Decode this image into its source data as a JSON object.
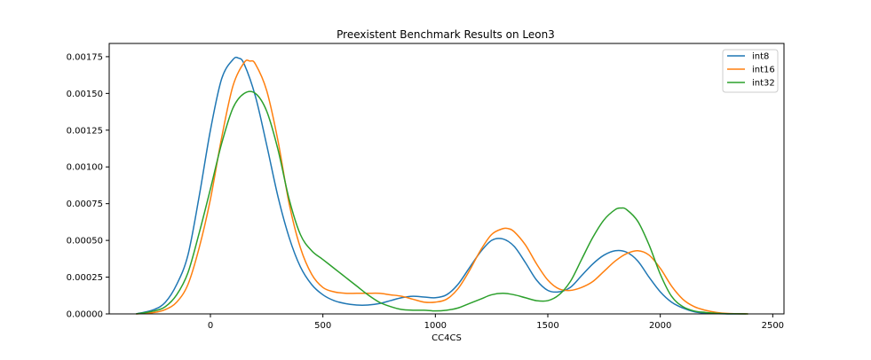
{
  "chart_data": {
    "type": "line",
    "title": "Preexistent Benchmark Results on Leon3",
    "xlabel": "CC4CS",
    "ylabel": "",
    "xlim": [
      -450,
      2550
    ],
    "ylim": [
      0,
      0.00184
    ],
    "x_ticks": [
      0,
      500,
      1000,
      1500,
      2000,
      2500
    ],
    "x_tick_labels": [
      "0",
      "500",
      "1000",
      "1500",
      "2000",
      "2500"
    ],
    "y_ticks": [
      0,
      0.00025,
      0.0005,
      0.00075,
      0.001,
      0.00125,
      0.0015,
      0.00175
    ],
    "y_tick_labels": [
      "0.00000",
      "0.00025",
      "0.00050",
      "0.00075",
      "0.00100",
      "0.00125",
      "0.00150",
      "0.00175"
    ],
    "legend_position": "top-right",
    "grid": false,
    "series": [
      {
        "name": "int8",
        "color": "#1f77b4",
        "x": [
          -330,
          -250,
          -200,
          -150,
          -100,
          -50,
          0,
          50,
          100,
          125,
          150,
          200,
          250,
          300,
          350,
          400,
          450,
          500,
          550,
          600,
          650,
          700,
          750,
          800,
          850,
          900,
          950,
          1000,
          1050,
          1100,
          1150,
          1200,
          1250,
          1300,
          1350,
          1400,
          1450,
          1500,
          1550,
          1600,
          1650,
          1700,
          1750,
          1800,
          1850,
          1900,
          1950,
          2000,
          2050,
          2100,
          2150,
          2200,
          2250,
          2300,
          2380
        ],
        "y": [
          0.0,
          3e-05,
          8e-05,
          0.0002,
          0.0004,
          0.0008,
          0.00125,
          0.0016,
          0.00173,
          0.00174,
          0.0017,
          0.00148,
          0.00115,
          0.0008,
          0.00052,
          0.00032,
          0.0002,
          0.00013,
          9e-05,
          7e-05,
          6e-05,
          6e-05,
          7e-05,
          9e-05,
          0.00011,
          0.00012,
          0.000115,
          0.00011,
          0.00013,
          0.0002,
          0.00031,
          0.00042,
          0.0005,
          0.00051,
          0.00046,
          0.00035,
          0.00023,
          0.00016,
          0.00015,
          0.00018,
          0.00026,
          0.00034,
          0.0004,
          0.00043,
          0.00042,
          0.00036,
          0.00025,
          0.00015,
          8e-05,
          4e-05,
          1.5e-05,
          5e-06,
          2e-06,
          0.0,
          0.0
        ]
      },
      {
        "name": "int16",
        "color": "#ff7f0e",
        "x": [
          -330,
          -250,
          -200,
          -150,
          -100,
          -50,
          0,
          50,
          100,
          150,
          175,
          200,
          250,
          300,
          350,
          400,
          450,
          500,
          550,
          600,
          650,
          700,
          750,
          800,
          850,
          900,
          950,
          1000,
          1050,
          1100,
          1150,
          1200,
          1250,
          1300,
          1325,
          1350,
          1400,
          1450,
          1500,
          1550,
          1600,
          1650,
          1700,
          1750,
          1800,
          1850,
          1900,
          1950,
          2000,
          2050,
          2100,
          2150,
          2200,
          2250,
          2300,
          2390
        ],
        "y": [
          0.0,
          1e-05,
          3e-05,
          8e-05,
          0.0002,
          0.00045,
          0.00078,
          0.0012,
          0.00155,
          0.00171,
          0.00172,
          0.0017,
          0.00152,
          0.00118,
          0.00075,
          0.00045,
          0.00027,
          0.00018,
          0.00015,
          0.00014,
          0.00014,
          0.00014,
          0.00014,
          0.00013,
          0.00012,
          0.0001,
          8e-05,
          8e-05,
          0.0001,
          0.00017,
          0.00029,
          0.00043,
          0.00054,
          0.00058,
          0.00058,
          0.00056,
          0.00047,
          0.00034,
          0.00023,
          0.00017,
          0.00016,
          0.00018,
          0.00022,
          0.00029,
          0.00036,
          0.00041,
          0.00043,
          0.0004,
          0.00031,
          0.00019,
          0.0001,
          5e-05,
          2.5e-05,
          1e-05,
          3e-06,
          0.0
        ]
      },
      {
        "name": "int32",
        "color": "#2ca02c",
        "x": [
          -330,
          -250,
          -200,
          -150,
          -100,
          -50,
          0,
          50,
          100,
          150,
          200,
          250,
          300,
          350,
          400,
          450,
          500,
          550,
          600,
          650,
          700,
          750,
          800,
          850,
          900,
          950,
          1000,
          1050,
          1100,
          1150,
          1200,
          1250,
          1300,
          1350,
          1400,
          1450,
          1500,
          1550,
          1600,
          1650,
          1700,
          1750,
          1800,
          1825,
          1850,
          1900,
          1950,
          2000,
          2050,
          2100,
          2150,
          2200,
          2250,
          2300,
          2390
        ],
        "y": [
          0.0,
          2e-05,
          5e-05,
          0.00013,
          0.00028,
          0.00055,
          0.00085,
          0.00116,
          0.0014,
          0.0015,
          0.0015,
          0.00138,
          0.00112,
          0.00078,
          0.00054,
          0.00043,
          0.00037,
          0.00031,
          0.00025,
          0.00019,
          0.00013,
          8e-05,
          5e-05,
          3e-05,
          2.5e-05,
          2.5e-05,
          2e-05,
          2.5e-05,
          4e-05,
          7e-05,
          0.0001,
          0.00013,
          0.00014,
          0.00013,
          0.00011,
          9e-05,
          9e-05,
          0.00013,
          0.00022,
          0.00037,
          0.00052,
          0.00064,
          0.00071,
          0.00072,
          0.00071,
          0.00063,
          0.00047,
          0.00027,
          0.00012,
          5e-05,
          2e-05,
          1e-05,
          4e-06,
          1e-06,
          0.0
        ]
      }
    ]
  }
}
